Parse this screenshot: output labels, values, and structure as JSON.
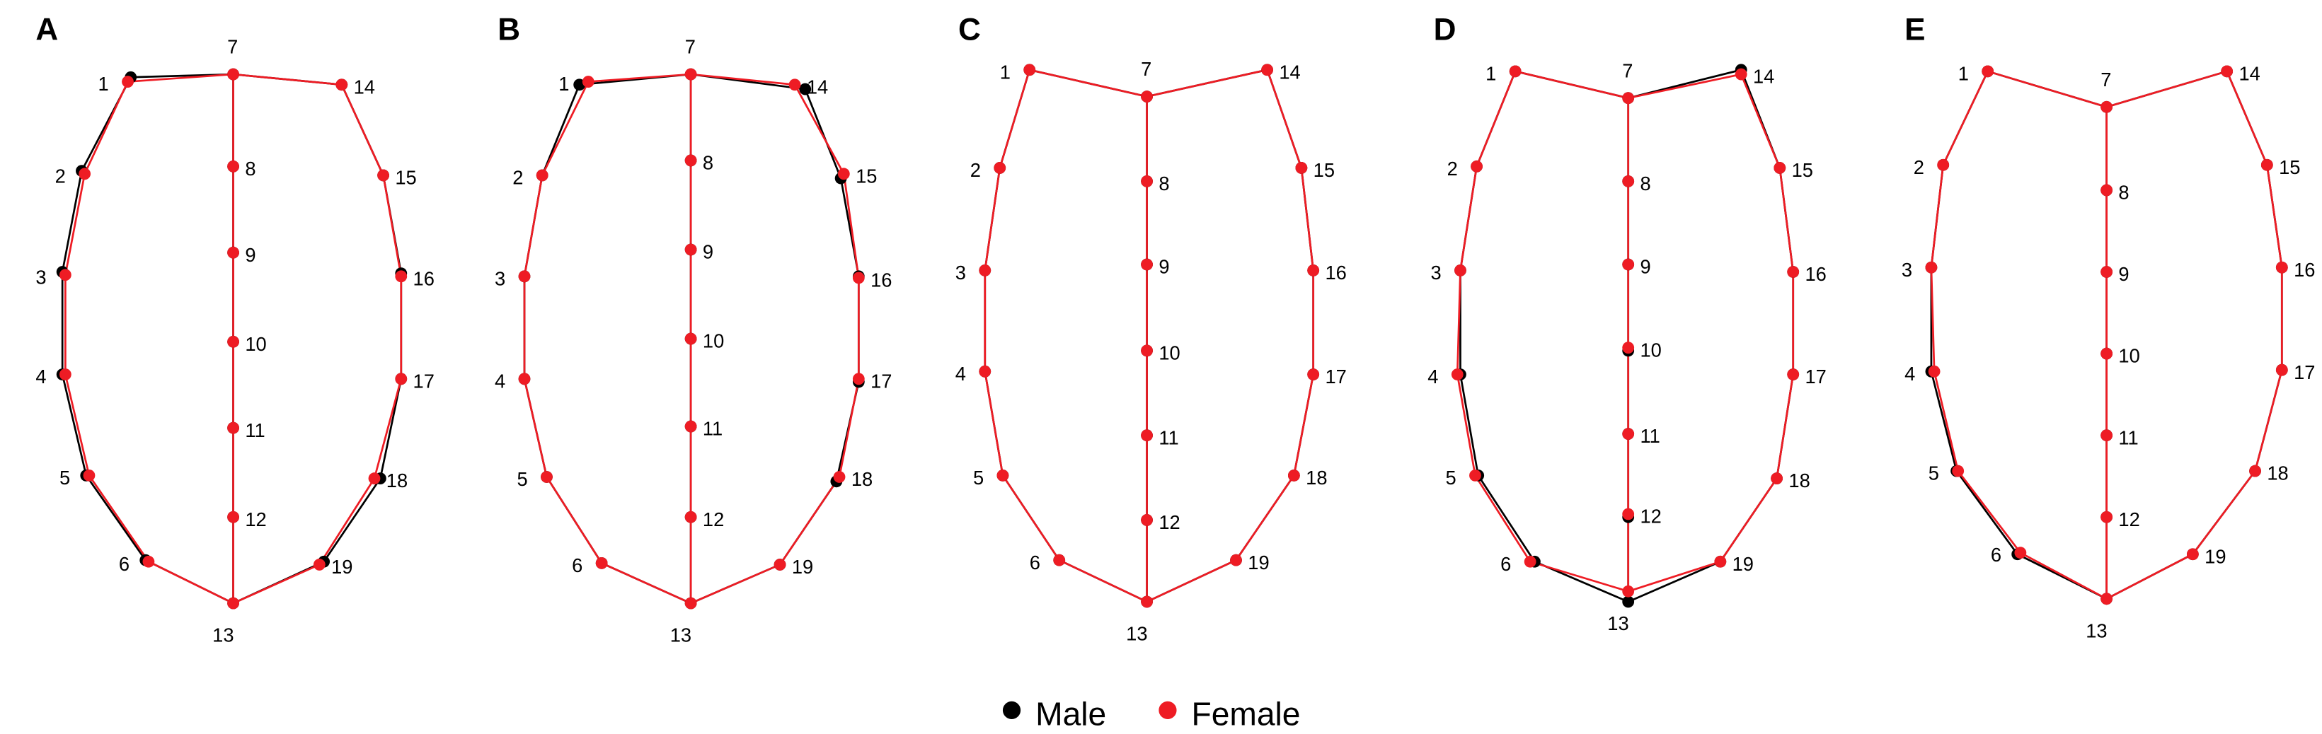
{
  "panels": [
    {
      "label": "A",
      "male": {
        "1": [
          88,
          52
        ],
        "2": [
          55,
          115
        ],
        "3": [
          42,
          183
        ],
        "4": [
          42,
          252
        ],
        "5": [
          58,
          320
        ],
        "6": [
          98,
          377
        ],
        "7": [
          157,
          50
        ],
        "8": [
          157,
          112
        ],
        "9": [
          157,
          170
        ],
        "10": [
          157,
          230
        ],
        "11": [
          157,
          288
        ],
        "12": [
          157,
          348
        ],
        "13": [
          157,
          406
        ],
        "14": [
          230,
          57
        ],
        "15": [
          258,
          118
        ],
        "16": [
          270,
          184
        ],
        "17": [
          270,
          255
        ],
        "18": [
          256,
          322
        ],
        "19": [
          218,
          378
        ]
      },
      "female": {
        "1": [
          86,
          55
        ],
        "2": [
          57,
          117
        ],
        "3": [
          44,
          185
        ],
        "4": [
          44,
          252
        ],
        "5": [
          60,
          320
        ],
        "6": [
          100,
          378
        ],
        "7": [
          157,
          50
        ],
        "8": [
          157,
          112
        ],
        "9": [
          157,
          170
        ],
        "10": [
          157,
          230
        ],
        "11": [
          157,
          288
        ],
        "12": [
          157,
          348
        ],
        "13": [
          157,
          406
        ],
        "14": [
          230,
          57
        ],
        "15": [
          258,
          118
        ],
        "16": [
          270,
          186
        ],
        "17": [
          270,
          255
        ],
        "18": [
          252,
          322
        ],
        "19": [
          215,
          380
        ]
      }
    },
    {
      "label": "B",
      "male": {
        "1": [
          390,
          57
        ],
        "2": [
          365,
          118
        ],
        "3": [
          353,
          186
        ],
        "4": [
          353,
          255
        ],
        "5": [
          368,
          321
        ],
        "6": [
          405,
          379
        ],
        "7": [
          465,
          50
        ],
        "8": [
          465,
          108
        ],
        "9": [
          465,
          168
        ],
        "10": [
          465,
          228
        ],
        "11": [
          465,
          287
        ],
        "12": [
          465,
          348
        ],
        "13": [
          465,
          406
        ],
        "14": [
          542,
          60
        ],
        "15": [
          566,
          120
        ],
        "16": [
          578,
          186
        ],
        "17": [
          578,
          257
        ],
        "18": [
          563,
          324
        ],
        "19": [
          525,
          380
        ]
      },
      "female": {
        "1": [
          396,
          55
        ],
        "2": [
          365,
          118
        ],
        "3": [
          353,
          186
        ],
        "4": [
          353,
          255
        ],
        "5": [
          368,
          321
        ],
        "6": [
          405,
          379
        ],
        "7": [
          465,
          50
        ],
        "8": [
          465,
          108
        ],
        "9": [
          465,
          168
        ],
        "10": [
          465,
          228
        ],
        "11": [
          465,
          287
        ],
        "12": [
          465,
          348
        ],
        "13": [
          465,
          406
        ],
        "14": [
          535,
          57
        ],
        "15": [
          568,
          117
        ],
        "16": [
          578,
          187
        ],
        "17": [
          578,
          255
        ],
        "18": [
          565,
          321
        ],
        "19": [
          525,
          380
        ]
      }
    },
    {
      "label": "C",
      "male": {
        "1": [
          693,
          47
        ],
        "2": [
          673,
          113
        ],
        "3": [
          663,
          182
        ],
        "4": [
          663,
          250
        ],
        "5": [
          675,
          320
        ],
        "6": [
          713,
          377
        ],
        "7": [
          772,
          65
        ],
        "8": [
          772,
          122
        ],
        "9": [
          772,
          178
        ],
        "10": [
          772,
          236
        ],
        "11": [
          772,
          293
        ],
        "12": [
          772,
          350
        ],
        "13": [
          772,
          405
        ],
        "14": [
          853,
          47
        ],
        "15": [
          876,
          113
        ],
        "16": [
          884,
          182
        ],
        "17": [
          884,
          252
        ],
        "18": [
          871,
          320
        ],
        "19": [
          832,
          377
        ]
      },
      "female": {
        "1": [
          693,
          47
        ],
        "2": [
          673,
          113
        ],
        "3": [
          663,
          182
        ],
        "4": [
          663,
          250
        ],
        "5": [
          675,
          320
        ],
        "6": [
          713,
          377
        ],
        "7": [
          772,
          65
        ],
        "8": [
          772,
          122
        ],
        "9": [
          772,
          178
        ],
        "10": [
          772,
          236
        ],
        "11": [
          772,
          293
        ],
        "12": [
          772,
          350
        ],
        "13": [
          772,
          405
        ],
        "14": [
          853,
          47
        ],
        "15": [
          876,
          113
        ],
        "16": [
          884,
          182
        ],
        "17": [
          884,
          252
        ],
        "18": [
          871,
          320
        ],
        "19": [
          832,
          377
        ]
      }
    },
    {
      "label": "D",
      "male": {
        "1": [
          1020,
          48
        ],
        "2": [
          994,
          112
        ],
        "3": [
          983,
          182
        ],
        "4": [
          983,
          252
        ],
        "5": [
          995,
          320
        ],
        "6": [
          1033,
          378
        ],
        "7": [
          1096,
          66
        ],
        "8": [
          1096,
          122
        ],
        "9": [
          1096,
          178
        ],
        "10": [
          1096,
          236
        ],
        "11": [
          1096,
          292
        ],
        "12": [
          1096,
          348
        ],
        "13": [
          1096,
          405
        ],
        "14": [
          1172,
          47
        ],
        "15": [
          1198,
          113
        ],
        "16": [
          1207,
          183
        ],
        "17": [
          1207,
          252
        ],
        "18": [
          1196,
          322
        ],
        "19": [
          1158,
          378
        ]
      },
      "female": {
        "1": [
          1020,
          48
        ],
        "2": [
          994,
          112
        ],
        "3": [
          983,
          182
        ],
        "4": [
          981,
          252
        ],
        "5": [
          993,
          320
        ],
        "6": [
          1030,
          378
        ],
        "7": [
          1096,
          66
        ],
        "8": [
          1096,
          122
        ],
        "9": [
          1096,
          178
        ],
        "10": [
          1096,
          234
        ],
        "11": [
          1096,
          292
        ],
        "12": [
          1096,
          346
        ],
        "13": [
          1096,
          398
        ],
        "14": [
          1172,
          50
        ],
        "15": [
          1198,
          113
        ],
        "16": [
          1207,
          183
        ],
        "17": [
          1207,
          252
        ],
        "18": [
          1196,
          322
        ],
        "19": [
          1158,
          378
        ]
      }
    },
    {
      "label": "E",
      "male": {
        "1": [
          1338,
          48
        ],
        "2": [
          1308,
          111
        ],
        "3": [
          1300,
          180
        ],
        "4": [
          1300,
          250
        ],
        "5": [
          1317,
          317
        ],
        "6": [
          1358,
          373
        ],
        "7": [
          1418,
          72
        ],
        "8": [
          1418,
          128
        ],
        "9": [
          1418,
          183
        ],
        "10": [
          1418,
          238
        ],
        "11": [
          1418,
          293
        ],
        "12": [
          1418,
          348
        ],
        "13": [
          1418,
          403
        ],
        "14": [
          1499,
          48
        ],
        "15": [
          1526,
          111
        ],
        "16": [
          1536,
          180
        ],
        "17": [
          1536,
          249
        ],
        "18": [
          1518,
          317
        ],
        "19": [
          1476,
          373
        ]
      },
      "female": {
        "1": [
          1338,
          48
        ],
        "2": [
          1308,
          111
        ],
        "3": [
          1300,
          180
        ],
        "4": [
          1302,
          250
        ],
        "5": [
          1318,
          317
        ],
        "6": [
          1360,
          372
        ],
        "7": [
          1418,
          72
        ],
        "8": [
          1418,
          128
        ],
        "9": [
          1418,
          183
        ],
        "10": [
          1418,
          238
        ],
        "11": [
          1418,
          293
        ],
        "12": [
          1418,
          348
        ],
        "13": [
          1418,
          403
        ],
        "14": [
          1499,
          48
        ],
        "15": [
          1526,
          111
        ],
        "16": [
          1536,
          180
        ],
        "17": [
          1536,
          249
        ],
        "18": [
          1518,
          317
        ],
        "19": [
          1476,
          373
        ]
      }
    }
  ],
  "legend": {
    "male": "Male",
    "female": "Female"
  },
  "colors": {
    "male": "#000000",
    "female": "#ee1c24"
  }
}
